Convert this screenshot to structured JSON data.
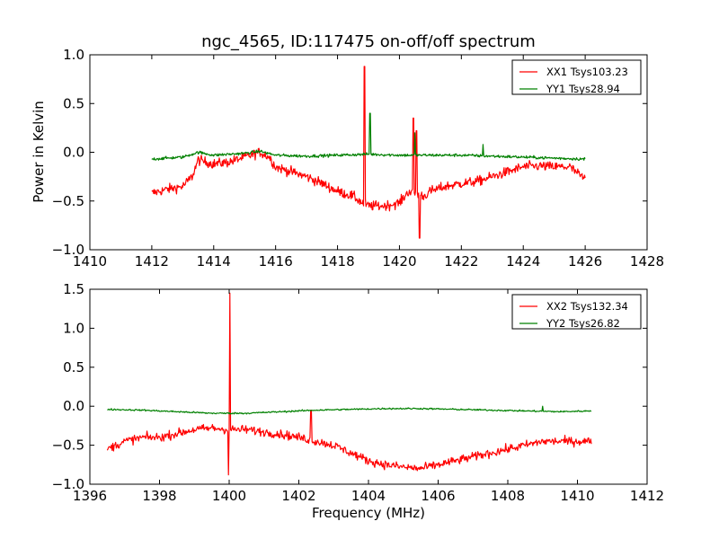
{
  "figure": {
    "title": "ngc_4565, ID:117475 on-off/off spectrum",
    "xlabel": "Frequency (MHz)",
    "ylabel": "Power in Kelvin"
  },
  "chart_data": [
    {
      "type": "line",
      "title": "ngc_4565, ID:117475 on-off/off spectrum",
      "xlabel": "",
      "ylabel": "Power in Kelvin",
      "xlim": [
        1410,
        1428
      ],
      "ylim": [
        -1.0,
        1.0
      ],
      "xticks": [
        1410,
        1412,
        1414,
        1416,
        1418,
        1420,
        1422,
        1424,
        1426,
        1428
      ],
      "yticks": [
        -1.0,
        -0.5,
        0.0,
        0.5,
        1.0
      ],
      "xtick_labels": [
        "1410",
        "1412",
        "1414",
        "1416",
        "1418",
        "1420",
        "1422",
        "1424",
        "1426",
        "1428"
      ],
      "ytick_labels": [
        "−1.0",
        "−0.5",
        "0.0",
        "0.5",
        "1.0"
      ],
      "grid": false,
      "legend_position": "top-right",
      "series": [
        {
          "name": "XX1 Tsys103.23",
          "color": "#ff0000",
          "noise": 0.05,
          "x": [
            1412.0,
            1412.5,
            1413.0,
            1413.3,
            1413.5,
            1414.0,
            1414.5,
            1415.0,
            1415.5,
            1415.8,
            1416.0,
            1416.5,
            1417.0,
            1417.5,
            1418.0,
            1418.5,
            1418.8,
            1419.0,
            1419.5,
            1420.0,
            1420.3,
            1420.8,
            1421.0,
            1421.5,
            1422.0,
            1422.5,
            1423.0,
            1423.5,
            1424.0,
            1424.5,
            1425.0,
            1425.5,
            1426.0
          ],
          "y": [
            -0.42,
            -0.38,
            -0.35,
            -0.25,
            -0.08,
            -0.12,
            -0.1,
            -0.05,
            0.0,
            -0.05,
            -0.15,
            -0.2,
            -0.25,
            -0.32,
            -0.4,
            -0.45,
            -0.52,
            -0.55,
            -0.55,
            -0.52,
            -0.4,
            -0.45,
            -0.4,
            -0.35,
            -0.32,
            -0.3,
            -0.25,
            -0.2,
            -0.15,
            -0.14,
            -0.15,
            -0.15,
            -0.28
          ],
          "spikes": [
            {
              "x": 1418.87,
              "y": 0.88
            },
            {
              "x": 1418.9,
              "y": -0.48
            },
            {
              "x": 1420.45,
              "y": 0.35
            },
            {
              "x": 1420.55,
              "y": 0.22
            },
            {
              "x": 1420.65,
              "y": -0.88
            }
          ]
        },
        {
          "name": "YY1 Tsys28.94",
          "color": "#008000",
          "noise": 0.015,
          "x": [
            1412.0,
            1413.0,
            1413.5,
            1414.0,
            1415.0,
            1415.5,
            1416.0,
            1417.0,
            1418.0,
            1419.0,
            1420.0,
            1421.0,
            1422.0,
            1423.0,
            1424.0,
            1425.0,
            1426.0
          ],
          "y": [
            -0.07,
            -0.05,
            0.0,
            -0.03,
            -0.01,
            0.01,
            -0.03,
            -0.04,
            -0.03,
            -0.02,
            -0.03,
            -0.03,
            -0.03,
            -0.04,
            -0.05,
            -0.06,
            -0.07
          ],
          "spikes": [
            {
              "x": 1419.05,
              "y": 0.4
            },
            {
              "x": 1420.5,
              "y": 0.2
            },
            {
              "x": 1422.7,
              "y": 0.08
            }
          ]
        }
      ]
    },
    {
      "type": "line",
      "title": "",
      "xlabel": "Frequency (MHz)",
      "ylabel": "",
      "xlim": [
        1396,
        1412
      ],
      "ylim": [
        -1.0,
        1.5
      ],
      "xticks": [
        1396,
        1398,
        1400,
        1402,
        1404,
        1406,
        1408,
        1410,
        1412
      ],
      "yticks": [
        -1.0,
        -0.5,
        0.0,
        0.5,
        1.0,
        1.5
      ],
      "xtick_labels": [
        "1396",
        "1398",
        "1400",
        "1402",
        "1404",
        "1406",
        "1408",
        "1410",
        "1412"
      ],
      "ytick_labels": [
        "−1.0",
        "−0.5",
        "0.0",
        "0.5",
        "1.0",
        "1.5"
      ],
      "grid": false,
      "legend_position": "top-right",
      "series": [
        {
          "name": "XX2 Tsys132.34",
          "color": "#ff0000",
          "noise": 0.055,
          "x": [
            1396.5,
            1397.0,
            1397.5,
            1398.0,
            1398.5,
            1399.0,
            1399.5,
            1400.0,
            1400.5,
            1401.0,
            1401.5,
            1402.0,
            1402.5,
            1403.0,
            1403.5,
            1404.0,
            1404.5,
            1405.0,
            1405.5,
            1406.0,
            1406.5,
            1407.0,
            1407.5,
            1408.0,
            1408.5,
            1409.0,
            1409.5,
            1410.0,
            1410.4
          ],
          "y": [
            -0.55,
            -0.45,
            -0.4,
            -0.4,
            -0.35,
            -0.3,
            -0.28,
            -0.3,
            -0.3,
            -0.33,
            -0.36,
            -0.4,
            -0.45,
            -0.5,
            -0.6,
            -0.7,
            -0.75,
            -0.78,
            -0.8,
            -0.75,
            -0.7,
            -0.65,
            -0.6,
            -0.55,
            -0.5,
            -0.45,
            -0.45,
            -0.45,
            -0.45
          ],
          "spikes": [
            {
              "x": 1399.98,
              "y": -0.88
            },
            {
              "x": 1400.02,
              "y": 1.45
            },
            {
              "x": 1402.35,
              "y": -0.05
            }
          ]
        },
        {
          "name": "YY2 Tsys26.82",
          "color": "#008000",
          "noise": 0.01,
          "x": [
            1396.5,
            1397.5,
            1398.5,
            1399.5,
            1400.5,
            1401.5,
            1402.5,
            1403.5,
            1404.5,
            1405.5,
            1406.5,
            1407.5,
            1408.5,
            1409.5,
            1410.4
          ],
          "y": [
            -0.04,
            -0.05,
            -0.07,
            -0.09,
            -0.09,
            -0.07,
            -0.05,
            -0.04,
            -0.03,
            -0.03,
            -0.04,
            -0.05,
            -0.06,
            -0.07,
            -0.06
          ],
          "spikes": [
            {
              "x": 1409.0,
              "y": 0.0
            }
          ]
        }
      ]
    }
  ]
}
